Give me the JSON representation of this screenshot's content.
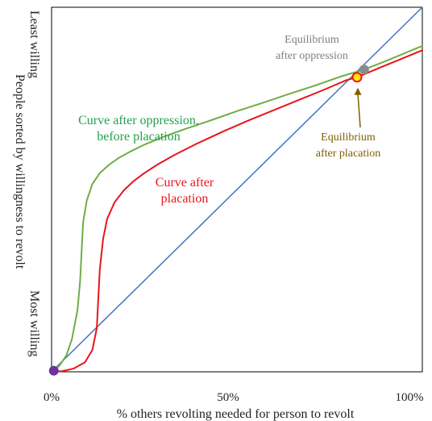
{
  "chart_data": {
    "type": "line",
    "xlabel": "% others revolting needed for person to revolt",
    "ylabel": "People sorted by willingness to revolt",
    "y_top_label": "Least willing",
    "y_bottom_label": "Most willing",
    "x_ticks": [
      {
        "value": 0,
        "label": "0%"
      },
      {
        "value": 50,
        "label": "50%"
      },
      {
        "value": 100,
        "label": "100%"
      }
    ],
    "xlim": [
      0,
      100
    ],
    "ylim": [
      0,
      100
    ],
    "grid": false,
    "colors": {
      "diagonal": "#4472C4",
      "oppression": "#70AD47",
      "placation": "#E8151B",
      "eq_oppression_fill": "#8A8A8A",
      "eq_placation_fill": "#FFE600",
      "eq_placation_stroke": "#E8151B",
      "origin_fill": "#7030A0",
      "oppression_text": "#22A04B",
      "placation_text": "#E8151B",
      "eq_oppression_text": "#7F7F7F",
      "eq_placation_text": "#7F6000"
    },
    "series": [
      {
        "key": "diagonal",
        "x": [
          0,
          100
        ],
        "y": [
          0,
          100
        ]
      },
      {
        "key": "oppression",
        "x": [
          0.0,
          2.0,
          4.0,
          5.5,
          7.0,
          7.7,
          8.1,
          8.5,
          9.5,
          11.0,
          13.0,
          15.5,
          18.0,
          21.0,
          25.0,
          30.0,
          36.0,
          43.0,
          50.0,
          57.0,
          64.0,
          71.0,
          78.0,
          84.3,
          90.0,
          95.0,
          100.0
        ],
        "y": [
          0.5,
          1.5,
          4.5,
          9.0,
          17.0,
          25.0,
          33.0,
          41.0,
          47.0,
          51.5,
          54.5,
          56.8,
          58.6,
          60.3,
          62.3,
          64.4,
          66.6,
          69.0,
          71.5,
          73.8,
          76.2,
          78.5,
          81.0,
          82.9,
          85.2,
          87.3,
          89.4
        ]
      },
      {
        "key": "placation",
        "x": [
          0.0,
          3.0,
          6.0,
          9.0,
          11.0,
          12.2,
          12.6,
          13.0,
          13.9,
          15.0,
          17.0,
          19.5,
          22.0,
          25.0,
          28.5,
          33.0,
          39.0,
          46.0,
          53.0,
          60.0,
          67.0,
          74.0,
          79.5,
          82.4,
          88.0,
          94.0,
          100.0
        ],
        "y": [
          0.0,
          0.2,
          0.9,
          2.6,
          6.0,
          12.0,
          20.0,
          28.0,
          36.5,
          42.0,
          46.5,
          49.8,
          52.2,
          54.5,
          56.8,
          59.4,
          62.5,
          65.8,
          68.9,
          71.8,
          74.7,
          77.6,
          80.0,
          80.8,
          83.2,
          85.7,
          88.2
        ]
      }
    ],
    "points": [
      {
        "key": "origin",
        "x": 0.6,
        "y": 0.3
      },
      {
        "key": "eq_oppression",
        "x": 84.3,
        "y": 82.9
      },
      {
        "key": "eq_placation",
        "x": 82.4,
        "y": 80.8
      }
    ],
    "annotations": {
      "oppression_curve": [
        "Curve after oppression,",
        "before placation"
      ],
      "placation_curve": [
        "Curve after",
        "placation"
      ],
      "eq_oppression": [
        "Equilibrium",
        "after oppression"
      ],
      "eq_placation": [
        "Equilibrium",
        "after placation"
      ]
    }
  }
}
